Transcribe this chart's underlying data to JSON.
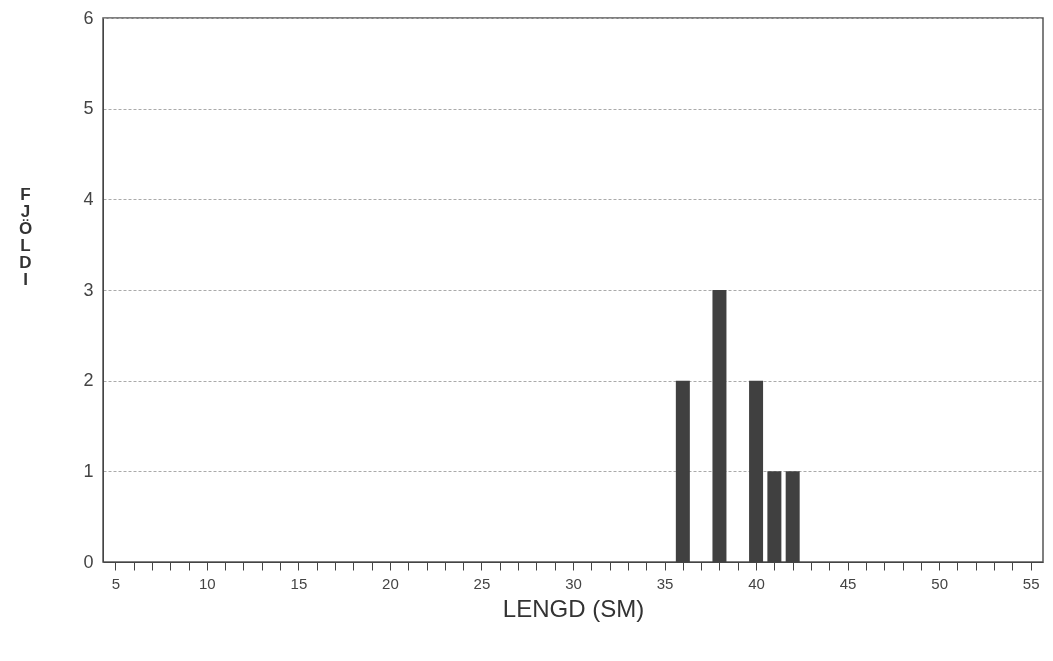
{
  "chart_data": {
    "type": "bar",
    "xlabel": "LENGD (SM)",
    "ylabel": "FJÖLDI",
    "x": [
      36,
      38,
      40,
      41,
      42
    ],
    "values": [
      2,
      3,
      2,
      1,
      1
    ],
    "color": "#404040",
    "xlim": [
      4.6,
      55.4
    ],
    "xticks": [
      5,
      {
        "value": 6,
        "label": null
      },
      {
        "value": 7,
        "label": null
      },
      {
        "value": 8,
        "label": null
      },
      {
        "value": 9,
        "label": null
      },
      10,
      {
        "value": 11,
        "label": null
      },
      {
        "value": 12,
        "label": null
      },
      {
        "value": 13,
        "label": null
      },
      {
        "value": 14,
        "label": null
      },
      15,
      {
        "value": 16,
        "label": null
      },
      {
        "value": 17,
        "label": null
      },
      {
        "value": 18,
        "label": null
      },
      {
        "value": 19,
        "label": null
      },
      20,
      {
        "value": 21,
        "label": null
      },
      {
        "value": 22,
        "label": null
      },
      {
        "value": 23,
        "label": null
      },
      {
        "value": 24,
        "label": null
      },
      25,
      {
        "value": 26,
        "label": null
      },
      {
        "value": 27,
        "label": null
      },
      {
        "value": 28,
        "label": null
      },
      {
        "value": 29,
        "label": null
      },
      30,
      {
        "value": 31,
        "label": null
      },
      {
        "value": 32,
        "label": null
      },
      {
        "value": 33,
        "label": null
      },
      {
        "value": 34,
        "label": null
      },
      35,
      {
        "value": 36,
        "label": null
      },
      {
        "value": 37,
        "label": null
      },
      {
        "value": 38,
        "label": null
      },
      {
        "value": 39,
        "label": null
      },
      40,
      {
        "value": 41,
        "label": null
      },
      {
        "value": 42,
        "label": null
      },
      {
        "value": 43,
        "label": null
      },
      {
        "value": 44,
        "label": null
      },
      45,
      {
        "value": 46,
        "label": null
      },
      {
        "value": 47,
        "label": null
      },
      {
        "value": 48,
        "label": null
      },
      {
        "value": 49,
        "label": null
      },
      50,
      {
        "value": 51,
        "label": null
      },
      {
        "value": 52,
        "label": null
      },
      {
        "value": 53,
        "label": null
      },
      {
        "value": 54,
        "label": null
      },
      55
    ],
    "ylim": [
      0,
      6
    ],
    "yticks": [
      0,
      1,
      2,
      3,
      4,
      5,
      6
    ],
    "grid": "y"
  }
}
